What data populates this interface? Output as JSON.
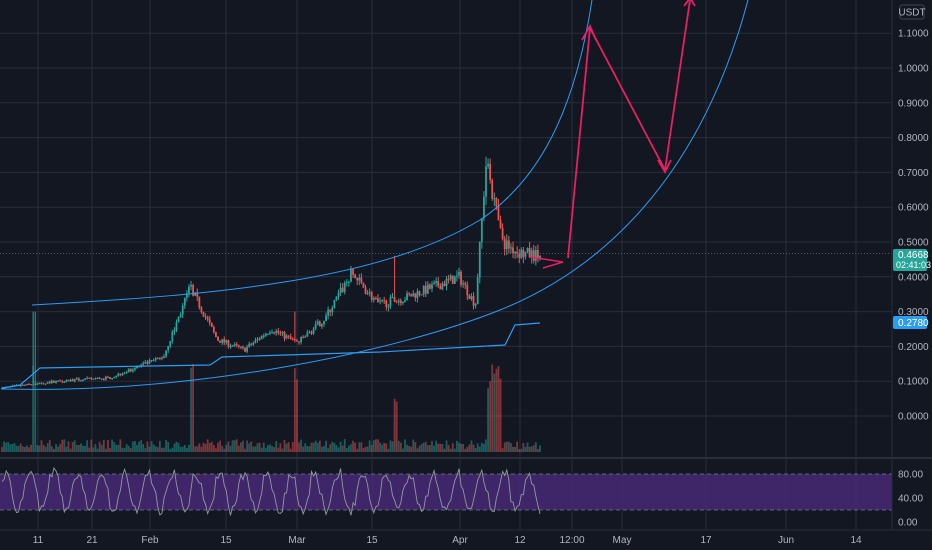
{
  "chart_data": {
    "type": "candlestick",
    "currency": "USDT",
    "y_ticks": [
      "1.1000",
      "1.0000",
      "0.9000",
      "0.8000",
      "0.7000",
      "0.6000",
      "0.5000",
      "0.4000",
      "0.3000",
      "0.2000",
      "0.1000",
      "0.0000"
    ],
    "ylim": [
      -0.1,
      1.2
    ],
    "x_ticks": [
      "11",
      "21",
      "Feb",
      "15",
      "Mar",
      "15",
      "Apr",
      "12",
      "12:00",
      "May",
      "17",
      "Jun",
      "14"
    ],
    "last_price": "0.4668",
    "countdown": "02:41:03",
    "ma_value": "0.2780",
    "price_path": [
      [
        0,
        0.08
      ],
      [
        0.05,
        0.09
      ],
      [
        0.1,
        0.1
      ],
      [
        0.2,
        0.11
      ],
      [
        0.3,
        0.17
      ],
      [
        0.35,
        0.37
      ],
      [
        0.4,
        0.22
      ],
      [
        0.45,
        0.19
      ],
      [
        0.5,
        0.25
      ],
      [
        0.55,
        0.21
      ],
      [
        0.6,
        0.28
      ],
      [
        0.65,
        0.41
      ],
      [
        0.7,
        0.32
      ],
      [
        0.75,
        0.34
      ],
      [
        0.8,
        0.37
      ],
      [
        0.85,
        0.4
      ],
      [
        0.88,
        0.32
      ],
      [
        0.9,
        0.73
      ],
      [
        0.93,
        0.5
      ],
      [
        0.96,
        0.47
      ],
      [
        1,
        0.46
      ]
    ],
    "rsi_ticks": [
      "80.00",
      "40.00",
      "0.00"
    ],
    "rsi_band": [
      20,
      80
    ],
    "colors": {
      "background": "#131722",
      "grid": "#2a2e39",
      "up": "#26a69a",
      "down": "#ef5350",
      "channel": "#2a9df4",
      "projection": "#e91e63",
      "rsi_fill": "#4a2a7a",
      "rsi_line": "#9598a1",
      "price_badge": "#26a69a",
      "ma_badge": "#2a9df4"
    }
  }
}
